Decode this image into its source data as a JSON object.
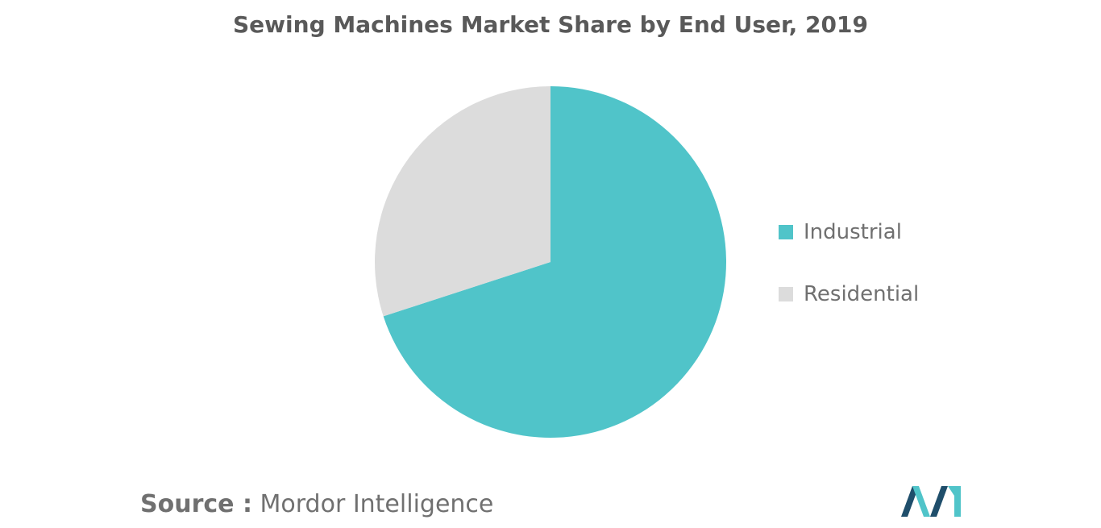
{
  "chart_data": {
    "type": "pie",
    "title": "Sewing Machines Market Share by End User, 2019",
    "series": [
      {
        "name": "",
        "slices": [
          {
            "label": "Industrial",
            "value": 70,
            "color": "#50C4C9"
          },
          {
            "label": "Residential",
            "value": 30,
            "color": "#DCDCDC"
          }
        ]
      }
    ],
    "legend": {
      "position": "right",
      "items": [
        "Industrial",
        "Residential"
      ]
    },
    "start_angle": "12 o'clock",
    "direction": "clockwise"
  },
  "source": {
    "prefix": "Source :",
    "name": "Mordor Intelligence"
  },
  "colors": {
    "title": "#595959",
    "text": "#707070",
    "logo_dark": "#1F4E6B",
    "logo_light": "#50C4C9"
  },
  "logo": {
    "icon": "mordor-intelligence-logo-icon"
  }
}
